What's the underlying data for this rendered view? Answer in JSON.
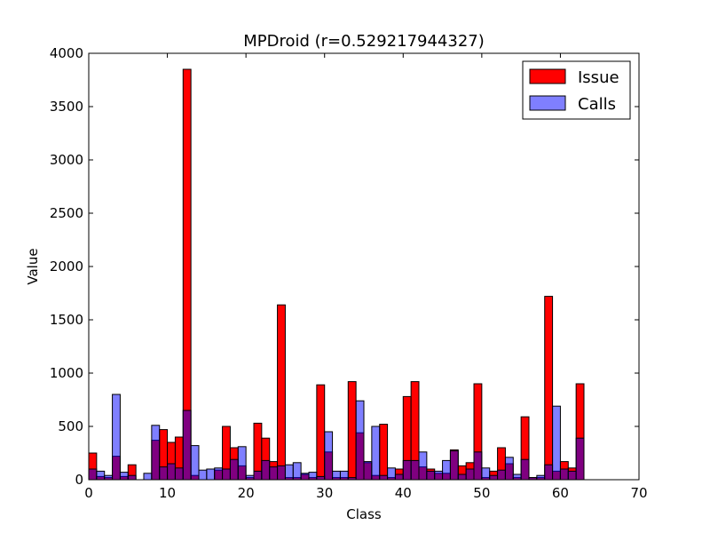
{
  "chart_data": {
    "type": "bar",
    "title": "MPDroid (r=0.529217944327)",
    "xlabel": "Class",
    "ylabel": "Value",
    "xlim": [
      0,
      70
    ],
    "ylim": [
      0,
      4000
    ],
    "xticks": [
      0,
      10,
      20,
      30,
      40,
      50,
      60,
      70
    ],
    "yticks": [
      0,
      500,
      1000,
      1500,
      2000,
      2500,
      3000,
      3500,
      4000
    ],
    "grid": false,
    "legend_position": "top-right",
    "bin_width": 1,
    "x": [
      0,
      1,
      2,
      3,
      4,
      5,
      6,
      7,
      8,
      9,
      10,
      11,
      12,
      13,
      14,
      15,
      16,
      17,
      18,
      19,
      20,
      21,
      22,
      23,
      24,
      25,
      26,
      27,
      28,
      29,
      30,
      31,
      32,
      33,
      34,
      35,
      36,
      37,
      38,
      39,
      40,
      41,
      42,
      43,
      44,
      45,
      46,
      47,
      48,
      49,
      50,
      51,
      52,
      53,
      54,
      55,
      56,
      57,
      58,
      59,
      60,
      61,
      62
    ],
    "series": [
      {
        "name": "Issue",
        "color": "#ff0000",
        "alpha": 1.0,
        "values": [
          250,
          30,
          20,
          220,
          30,
          140,
          0,
          0,
          370,
          470,
          350,
          400,
          3850,
          40,
          0,
          0,
          90,
          500,
          300,
          130,
          20,
          530,
          390,
          170,
          1640,
          20,
          20,
          50,
          20,
          890,
          260,
          20,
          20,
          920,
          440,
          160,
          40,
          520,
          20,
          100,
          780,
          920,
          120,
          100,
          60,
          60,
          280,
          130,
          160,
          900,
          20,
          80,
          300,
          150,
          20,
          590,
          20,
          20,
          1720,
          80,
          170,
          110,
          900
        ]
      },
      {
        "name": "Calls",
        "color": "#0000ff",
        "alpha": 0.5,
        "values": [
          100,
          80,
          40,
          800,
          70,
          40,
          0,
          60,
          510,
          120,
          150,
          110,
          650,
          320,
          90,
          100,
          110,
          100,
          190,
          310,
          40,
          80,
          180,
          120,
          130,
          140,
          160,
          60,
          70,
          30,
          450,
          80,
          80,
          20,
          740,
          170,
          500,
          40,
          110,
          50,
          180,
          180,
          260,
          80,
          80,
          180,
          270,
          50,
          100,
          260,
          110,
          40,
          90,
          210,
          50,
          190,
          20,
          40,
          140,
          690,
          100,
          80,
          390
        ]
      }
    ]
  }
}
